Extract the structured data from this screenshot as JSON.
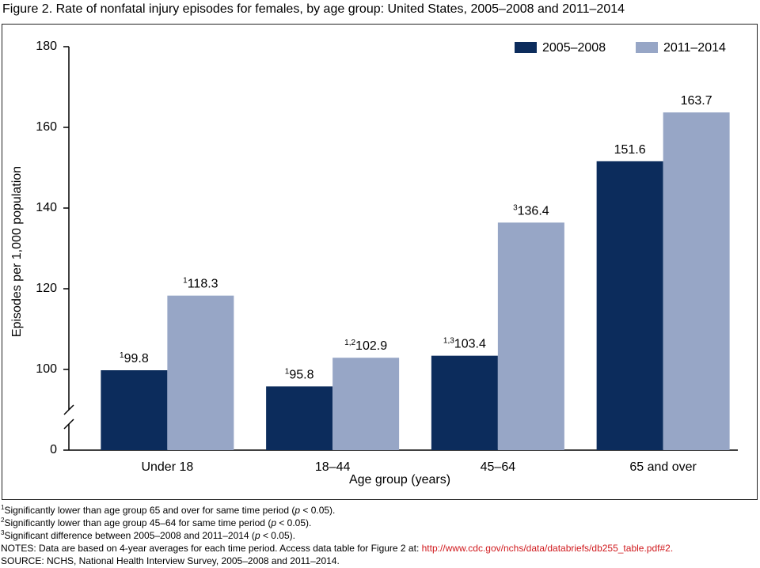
{
  "chart_data": {
    "type": "bar",
    "title": "Figure 2. Rate of nonfatal injury episodes for females, by age group: United States, 2005–2008 and 2011–2014",
    "x_label": "Age group (years)",
    "y_label": "Episodes per 1,000 population",
    "categories": [
      "Under 18",
      "18–44",
      "45–64",
      "65 and over"
    ],
    "series": [
      {
        "name": "2005–2008",
        "color": "#0c2c5c",
        "values": [
          99.8,
          95.8,
          103.4,
          151.6
        ],
        "footnote_refs": [
          "1",
          "1",
          "1,3",
          null
        ]
      },
      {
        "name": "2011–2014",
        "color": "#97a6c6",
        "values": [
          118.3,
          102.9,
          136.4,
          163.7
        ],
        "footnote_refs": [
          "1",
          "1,2",
          "3",
          null
        ]
      }
    ],
    "ylim": [
      0,
      180
    ],
    "ybreak": [
      0,
      80
    ],
    "yticks": [
      0,
      100,
      120,
      140,
      160,
      180
    ],
    "grid": false,
    "legend": "top-right",
    "footnotes": [
      {
        "mark": "1",
        "parts": [
          "Significantly lower than age group 65 and over for same time period (",
          "p",
          " < 0.05)."
        ]
      },
      {
        "mark": "2",
        "parts": [
          "Significantly lower than age group 45–64 for same time period (",
          "p",
          " < 0.05)."
        ]
      },
      {
        "mark": "3",
        "parts": [
          "Significant difference between 2005–2008 and 2011–2014 (",
          "p",
          " < 0.05)."
        ]
      }
    ],
    "notes": "NOTES: Data are based on 4-year averages for each time period. Access data table for Figure 2 at: ",
    "notes_link": "http://www.cdc.gov/nchs/data/databriefs/db255_table.pdf#2.",
    "source": "SOURCE: NCHS, National Health Interview Survey, 2005–2008 and 2011–2014."
  }
}
